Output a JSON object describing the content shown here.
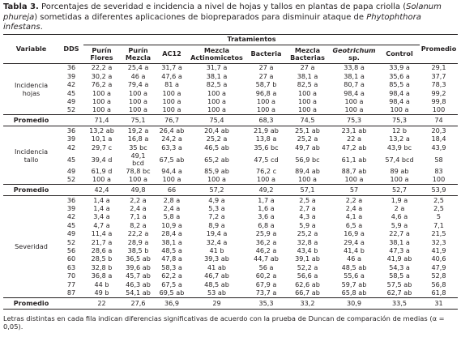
{
  "caption": {
    "bold": "Tabla 3.",
    "pre": " Porcentajes de severidad e incidencia a nivel de hojas y tallos en plantas de papa criolla (",
    "species": "Solanum phureja",
    "mid": ") sometidas a diferentes aplicaciones de biopreparados para disminuir ataque de ",
    "pathogen": "Phytophthora infestans",
    "end": "."
  },
  "headers": {
    "variable": "Variable",
    "dds": "DDS",
    "tratamientos": "Tratamientos",
    "promedio": "Promedio",
    "cols": [
      {
        "l1": "Purín",
        "l2": "Flores"
      },
      {
        "l1": "Purín",
        "l2": "Mezcla"
      },
      {
        "l1": "AC12",
        "l2": ""
      },
      {
        "l1": "Mezcla",
        "l2": "Actinomicetos"
      },
      {
        "l1": "Bacteria",
        "l2": ""
      },
      {
        "l1": "Mezcla",
        "l2": "Bacterias"
      },
      {
        "l1": "Geotrichum",
        "l2": "sp."
      },
      {
        "l1": "Control",
        "l2": ""
      }
    ]
  },
  "groups": [
    {
      "variable": [
        "Incidencia",
        "hojas"
      ],
      "rows": [
        {
          "dds": "36",
          "v": [
            "22,2 a",
            "25,4 a",
            "31,7 a",
            "31,7 a",
            "27 a",
            "27 a",
            "33,8 a",
            "33,9 a"
          ],
          "p": "29,1"
        },
        {
          "dds": "39",
          "v": [
            "30,2 a",
            "46 a",
            "47,6 a",
            "38,1 a",
            "27 a",
            "38,1 a",
            "38,1 a",
            "35,6 a"
          ],
          "p": "37,7"
        },
        {
          "dds": "42",
          "v": [
            "76,2 a",
            "79,4 a",
            "81 a",
            "82,5 a",
            "58,7 b",
            "82,5 a",
            "80,7 a",
            "85,5 a"
          ],
          "p": "78,3"
        },
        {
          "dds": "45",
          "v": [
            "100 a",
            "100 a",
            "100 a",
            "100 a",
            "96,8 a",
            "100 a",
            "98,4 a",
            "98,4 a"
          ],
          "p": "99,2"
        },
        {
          "dds": "49",
          "v": [
            "100 a",
            "100 a",
            "100 a",
            "100 a",
            "100 a",
            "100 a",
            "100 a",
            "98,4 a"
          ],
          "p": "99,8"
        },
        {
          "dds": "52",
          "v": [
            "100 a",
            "100 a",
            "100 a",
            "100 a",
            "100 a",
            "100 a",
            "100 a",
            "100 a"
          ],
          "p": "100"
        }
      ],
      "avg": {
        "label": "Promedio",
        "v": [
          "71,4",
          "75,1",
          "76,7",
          "75,4",
          "68,3",
          "74,5",
          "75,3",
          "75,3"
        ],
        "p": "74"
      }
    },
    {
      "variable": [
        "Incidencia",
        "tallo"
      ],
      "rows": [
        {
          "dds": "36",
          "v": [
            "13,2 ab",
            "19,2 a",
            "26,4 ab",
            "20,4 ab",
            "21,9 ab",
            "25,1 ab",
            "23,1 ab",
            "12 b"
          ],
          "p": "20,3"
        },
        {
          "dds": "39",
          "v": [
            "10,1 a",
            "16,8 a",
            "24,2 a",
            "25,2 a",
            "13,8 a",
            "25,2 a",
            "22 a",
            "13,2 a"
          ],
          "p": "18,4"
        },
        {
          "dds": "42",
          "v": [
            "29,7 c",
            "35 bc",
            "63,3 a",
            "46,5 ab",
            "35,6 bc",
            "49,7 ab",
            "47,2 ab",
            "43,9 bc"
          ],
          "p": "43,9"
        },
        {
          "dds": "45",
          "tall": true,
          "v": [
            "39,4 d",
            "49,1|bcd",
            "67,5 ab",
            "65,2 ab",
            "47,5 cd",
            "56,9 bc",
            "61,1 ab",
            "57,4 bcd"
          ],
          "p": "58"
        },
        {
          "dds": "49",
          "v": [
            "61,9 d",
            "78,8 bc",
            "94,4 a",
            "85,9 ab",
            "76,2 c",
            "89,4 ab",
            "88,7 ab",
            "89 ab"
          ],
          "p": "83"
        },
        {
          "dds": "52",
          "v": [
            "100 a",
            "100 a",
            "100 a",
            "100 a",
            "100 a",
            "100 a",
            "100 a",
            "100 a"
          ],
          "p": "100"
        }
      ],
      "avg": {
        "label": "Promedio",
        "v": [
          "42,4",
          "49,8",
          "66",
          "57,2",
          "49,2",
          "57,1",
          "57",
          "52,7"
        ],
        "p": "53,9"
      }
    },
    {
      "variable": [
        "Severidad"
      ],
      "rows": [
        {
          "dds": "36",
          "v": [
            "1,4 a",
            "2,2 a",
            "2,8 a",
            "4,9 a",
            "1,7 a",
            "2,5 a",
            "2,2 a",
            "1,9 a"
          ],
          "p": "2,5"
        },
        {
          "dds": "39",
          "v": [
            "1,4 a",
            "2,4 a",
            "2,4 a",
            "5,3 a",
            "1,6 a",
            "2,7 a",
            "2,4 a",
            "2 a"
          ],
          "p": "2,5"
        },
        {
          "dds": "42",
          "v": [
            "3,4 a",
            "7,1 a",
            "5,8 a",
            "7,2 a",
            "3,6 a",
            "4,3 a",
            "4,1 a",
            "4,6 a"
          ],
          "p": "5"
        },
        {
          "dds": "45",
          "v": [
            "4,7 a",
            "8,2 a",
            "10,9 a",
            "8,9 a",
            "6,8 a",
            "5,9 a",
            "6,5 a",
            "5,9 a"
          ],
          "p": "7,1"
        },
        {
          "dds": "49",
          "v": [
            "11,4 a",
            "22,2 a",
            "28,4 a",
            "19,4 a",
            "25,9 a",
            "25,2 a",
            "16,9 a",
            "22,7 a"
          ],
          "p": "21,5"
        },
        {
          "dds": "52",
          "v": [
            "21,7 a",
            "28,9 a",
            "38,1 a",
            "32,4 a",
            "36,2 a",
            "32,8 a",
            "29,4 a",
            "38,1 a"
          ],
          "p": "32,3"
        },
        {
          "dds": "56",
          "v": [
            "28,6 a",
            "38,5 b",
            "48,5 a",
            "41 b",
            "46,2 a",
            "43,4 b",
            "41,4 b",
            "47,3 a"
          ],
          "p": "41,9"
        },
        {
          "dds": "60",
          "v": [
            "28,5 b",
            "36,5 ab",
            "47,8 a",
            "39,3 ab",
            "44,7 ab",
            "39,1 ab",
            "46 a",
            "41,9 ab"
          ],
          "p": "40,6"
        },
        {
          "dds": "63",
          "v": [
            "32,8 b",
            "39,6 ab",
            "58,3 a",
            "41 ab",
            "56 a",
            "52,2 a",
            "48,5 ab",
            "54,3 a"
          ],
          "p": "47,9"
        },
        {
          "dds": "70",
          "v": [
            "36,8 a",
            "45,7 ab",
            "62,2 a",
            "46,7 ab",
            "60,2 a",
            "56,6 a",
            "55,6 a",
            "58,5 a"
          ],
          "p": "52,8"
        },
        {
          "dds": "77",
          "v": [
            "44 b",
            "46,3 ab",
            "67,5 a",
            "48,5 ab",
            "67,9 a",
            "62,6 ab",
            "59,7 ab",
            "57,5 ab"
          ],
          "p": "56,8"
        },
        {
          "dds": "87",
          "v": [
            "49 b",
            "54,1 ab",
            "69,5 ab",
            "53 ab",
            "73,7 a",
            "66,7 ab",
            "65,8 ab",
            "62,7 ab"
          ],
          "p": "61,8"
        }
      ],
      "avg": {
        "label": "Promedio",
        "v": [
          "22",
          "27,6",
          "36,9",
          "29",
          "35,3",
          "33,2",
          "30,9",
          "33,5"
        ],
        "p": "31"
      }
    }
  ],
  "footnote": "Letras distintas en cada fila indican diferencias significativas de acuerdo con la prueba de Duncan de comparación de medias (α = 0,05)."
}
